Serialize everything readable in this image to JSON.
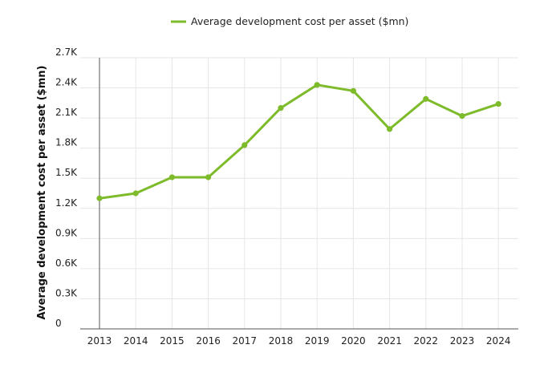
{
  "chart_data": {
    "type": "line",
    "title": "",
    "xlabel": "",
    "ylabel": "Average development cost per asset ($mn)",
    "legend": {
      "position": "top-center",
      "entries": [
        "Average development cost per asset ($mn)"
      ]
    },
    "grid": true,
    "x": [
      "2013",
      "2014",
      "2015",
      "2016",
      "2017",
      "2018",
      "2019",
      "2020",
      "2021",
      "2022",
      "2023",
      "2024"
    ],
    "series": [
      {
        "name": "Average development cost per asset ($mn)",
        "color": "#7dbb2b",
        "values": [
          1300,
          1350,
          1510,
          1510,
          1830,
          2200,
          2430,
          2370,
          1990,
          2290,
          2120,
          2240
        ]
      }
    ],
    "ylim": [
      0,
      2700
    ],
    "yticks": [
      0,
      300,
      600,
      900,
      1200,
      1500,
      1800,
      2100,
      2400,
      2700
    ],
    "ytick_labels": [
      "0",
      "0.3K",
      "0.6K",
      "0.9K",
      "1.2K",
      "1.5K",
      "1.8K",
      "2.1K",
      "2.4K",
      "2.7K"
    ]
  }
}
